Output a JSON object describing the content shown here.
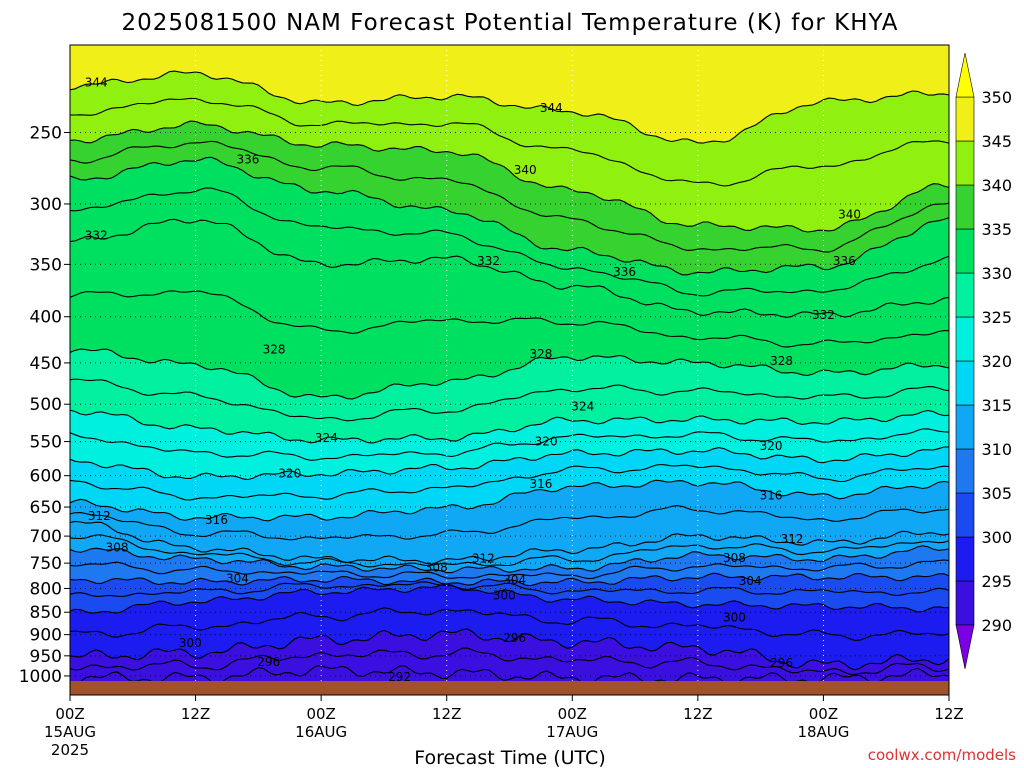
{
  "chart_data": {
    "type": "heatmap",
    "title": "2025081500 NAM Forecast Potential Temperature (K) for KHYA",
    "xlabel": "Forecast Time (UTC)",
    "ylabel": "",
    "credit": "coolwx.com/models",
    "x_ticks": [
      {
        "hour": 0,
        "label": "00Z",
        "sub": "15AUG",
        "sub2": "2025"
      },
      {
        "hour": 12,
        "label": "12Z",
        "sub": "",
        "sub2": ""
      },
      {
        "hour": 24,
        "label": "00Z",
        "sub": "16AUG",
        "sub2": ""
      },
      {
        "hour": 36,
        "label": "12Z",
        "sub": "",
        "sub2": ""
      },
      {
        "hour": 48,
        "label": "00Z",
        "sub": "17AUG",
        "sub2": ""
      },
      {
        "hour": 60,
        "label": "12Z",
        "sub": "",
        "sub2": ""
      },
      {
        "hour": 72,
        "label": "00Z",
        "sub": "18AUG",
        "sub2": ""
      },
      {
        "hour": 84,
        "label": "12Z",
        "sub": "",
        "sub2": ""
      }
    ],
    "xlim": [
      0,
      84
    ],
    "y_ticks": [
      250,
      300,
      350,
      400,
      450,
      500,
      550,
      600,
      650,
      700,
      750,
      800,
      850,
      900,
      950,
      1000
    ],
    "y_axis": "pressure (hPa), log scale, top 200, bottom 1013",
    "ylim": [
      1013,
      200
    ],
    "colorbar": {
      "levels": [
        290,
        295,
        300,
        305,
        310,
        315,
        320,
        325,
        330,
        335,
        340,
        345,
        350
      ],
      "colors": [
        "#7a00e6",
        "#3a0fe0",
        "#1c1cf0",
        "#1a4bf0",
        "#1e78f0",
        "#10a8f4",
        "#00d6f5",
        "#00f0e0",
        "#00f0a0",
        "#00e060",
        "#35d230",
        "#90f010",
        "#f0ef18",
        "#ffff00"
      ],
      "extend": "both"
    },
    "isotherm_interval_K": 2,
    "ground_color": "#a0522d",
    "series": [
      {
        "name": "344",
        "x": [
          0,
          12,
          24,
          36,
          48,
          60,
          72,
          84
        ],
        "values": [
          222,
          215,
          232,
          228,
          237,
          257,
          231,
          226
        ]
      },
      {
        "name": "340",
        "x": [
          0,
          12,
          24,
          36,
          48,
          60,
          72,
          84
        ],
        "values": [
          255,
          245,
          258,
          262,
          290,
          317,
          320,
          286
        ]
      },
      {
        "name": "336",
        "x": [
          0,
          12,
          24,
          36,
          48,
          60,
          72,
          84
        ],
        "values": [
          282,
          268,
          290,
          305,
          338,
          357,
          352,
          313
        ]
      },
      {
        "name": "332",
        "x": [
          0,
          12,
          24,
          36,
          48,
          60,
          72,
          84
        ],
        "values": [
          330,
          312,
          350,
          345,
          370,
          395,
          398,
          383
        ]
      },
      {
        "name": "328",
        "x": [
          0,
          12,
          24,
          36,
          48,
          60,
          72,
          84
        ],
        "values": [
          435,
          452,
          492,
          472,
          443,
          450,
          462,
          452
        ]
      },
      {
        "name": "324",
        "x": [
          0,
          12,
          24,
          36,
          48,
          60,
          72,
          84
        ],
        "values": [
          508,
          532,
          548,
          545,
          521,
          520,
          523,
          512
        ]
      },
      {
        "name": "320",
        "x": [
          0,
          12,
          24,
          36,
          48,
          60,
          72,
          84
        ],
        "values": [
          578,
          602,
          597,
          588,
          567,
          563,
          576,
          562
        ]
      },
      {
        "name": "316",
        "x": [
          0,
          12,
          24,
          36,
          48,
          60,
          72,
          84
        ],
        "values": [
          643,
          667,
          667,
          652,
          617,
          610,
          632,
          612
        ]
      },
      {
        "name": "312",
        "x": [
          0,
          12,
          24,
          36,
          48,
          60,
          72,
          84
        ],
        "values": [
          675,
          722,
          742,
          745,
          725,
          700,
          712,
          692
        ]
      },
      {
        "name": "308",
        "x": [
          0,
          12,
          24,
          36,
          48,
          60,
          72,
          84
        ],
        "values": [
          722,
          742,
          757,
          762,
          760,
          735,
          742,
          722
        ]
      },
      {
        "name": "304",
        "x": [
          0,
          12,
          24,
          36,
          48,
          60,
          72,
          84
        ],
        "values": [
          782,
          787,
          782,
          787,
          787,
          777,
          777,
          777
        ]
      },
      {
        "name": "300",
        "x": [
          0,
          12,
          24,
          36,
          48,
          60,
          72,
          84
        ],
        "values": [
          852,
          827,
          807,
          798,
          823,
          833,
          837,
          842
        ]
      },
      {
        "name": "296",
        "x": [
          0,
          12,
          24,
          36,
          48,
          60,
          72,
          84
        ],
        "values": [
          952,
          942,
          912,
          898,
          917,
          932,
          972,
          957
        ]
      },
      {
        "name": "292",
        "x": [
          0,
          12,
          24,
          36,
          48,
          60,
          72,
          84
        ],
        "values": [
          1005,
          1005,
          985,
          992,
          1005,
          1007,
          1007,
          995
        ]
      }
    ],
    "contour_labels": [
      {
        "text": "344",
        "x": 2.5,
        "y": 220
      },
      {
        "text": "344",
        "x": 46,
        "y": 235
      },
      {
        "text": "336",
        "x": 17,
        "y": 268
      },
      {
        "text": "340",
        "x": 43.5,
        "y": 275
      },
      {
        "text": "340",
        "x": 74.5,
        "y": 308
      },
      {
        "text": "332",
        "x": 2.5,
        "y": 325
      },
      {
        "text": "332",
        "x": 40,
        "y": 347
      },
      {
        "text": "336",
        "x": 53,
        "y": 357
      },
      {
        "text": "336",
        "x": 74,
        "y": 347
      },
      {
        "text": "332",
        "x": 72,
        "y": 398
      },
      {
        "text": "328",
        "x": 19.5,
        "y": 435
      },
      {
        "text": "328",
        "x": 45,
        "y": 440
      },
      {
        "text": "328",
        "x": 68,
        "y": 448
      },
      {
        "text": "324",
        "x": 49,
        "y": 503
      },
      {
        "text": "324",
        "x": 24.5,
        "y": 545
      },
      {
        "text": "320",
        "x": 45.5,
        "y": 550
      },
      {
        "text": "320",
        "x": 67,
        "y": 556
      },
      {
        "text": "320",
        "x": 21,
        "y": 597
      },
      {
        "text": "316",
        "x": 45,
        "y": 613
      },
      {
        "text": "316",
        "x": 67,
        "y": 631
      },
      {
        "text": "316",
        "x": 14,
        "y": 672
      },
      {
        "text": "312",
        "x": 2.8,
        "y": 665
      },
      {
        "text": "312",
        "x": 69,
        "y": 705
      },
      {
        "text": "312",
        "x": 39.5,
        "y": 741
      },
      {
        "text": "308",
        "x": 4.5,
        "y": 721
      },
      {
        "text": "308",
        "x": 35,
        "y": 758
      },
      {
        "text": "308",
        "x": 63.5,
        "y": 740
      },
      {
        "text": "304",
        "x": 16,
        "y": 780
      },
      {
        "text": "304",
        "x": 42.5,
        "y": 783
      },
      {
        "text": "304",
        "x": 65,
        "y": 785
      },
      {
        "text": "300",
        "x": 41.5,
        "y": 815
      },
      {
        "text": "300",
        "x": 63.5,
        "y": 862
      },
      {
        "text": "300",
        "x": 11.5,
        "y": 920
      },
      {
        "text": "296",
        "x": 42.5,
        "y": 908
      },
      {
        "text": "296",
        "x": 19,
        "y": 965
      },
      {
        "text": "296",
        "x": 68,
        "y": 967
      },
      {
        "text": "292",
        "x": 31.5,
        "y": 1003
      }
    ]
  }
}
